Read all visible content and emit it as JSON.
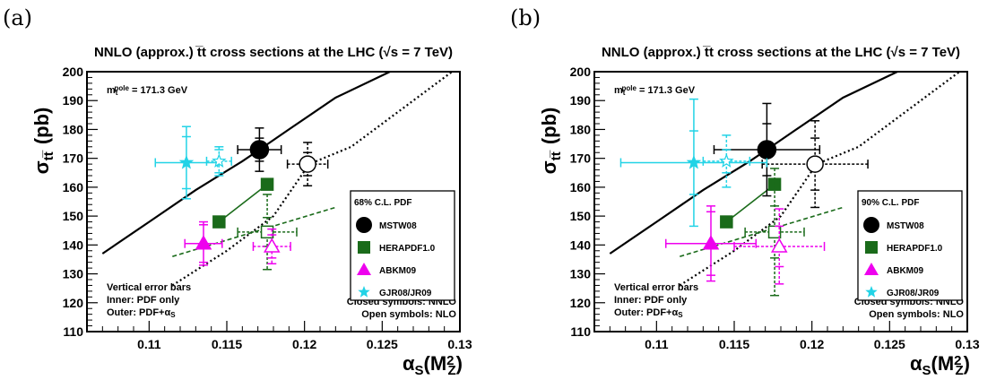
{
  "figure": {
    "panel_labels": [
      "(a)",
      "(b)"
    ],
    "title": "NNLO (approx.) tt cross sections at the LHC (√s = 7 TeV)",
    "ylabel": "σtt (pb)",
    "xlabel": "αS(M²Z)",
    "mass_note": "m_t^pole = 171.3 GeV",
    "error_bar_note": [
      "Vertical error bars",
      "Inner: PDF only",
      "Outer: PDF+αS"
    ],
    "symbols_note": [
      "Closed symbols: NNLO",
      "Open symbols: NLO"
    ]
  },
  "colors": {
    "MSTW08": "#000000",
    "HERAPDF1.0": "#1a6b1a",
    "ABKM09": "#ee00ee",
    "GJR08/JR09": "#22d3e6"
  },
  "chart_data": [
    {
      "type": "scatter",
      "panel": "(a)",
      "title": "NNLO (approx.) tt cross sections at the LHC (√s = 7 TeV)",
      "xlabel": "αS(M²Z)",
      "ylabel": "σtt (pb)",
      "xlim": [
        0.106,
        0.13
      ],
      "ylim": [
        110,
        200
      ],
      "xticks": [
        0.11,
        0.115,
        0.12,
        0.125,
        0.13
      ],
      "yticks": [
        110,
        120,
        130,
        140,
        150,
        160,
        170,
        180,
        190,
        200
      ],
      "legend_title": "68% C.L. PDF",
      "legend_position": "right",
      "curves": [
        {
          "name": "MSTW08 NNLO",
          "style": "solid",
          "x": [
            0.107,
            0.11,
            0.113,
            0.116,
            0.1171,
            0.119,
            0.122,
            0.1255
          ],
          "y": [
            137,
            148,
            159,
            169,
            173,
            180,
            191,
            200
          ]
        },
        {
          "name": "MSTW08 NLO",
          "style": "dotted",
          "x": [
            0.1115,
            0.115,
            0.118,
            0.1203,
            0.123,
            0.126,
            0.1295
          ],
          "y": [
            126,
            138,
            150,
            168,
            174,
            186,
            200
          ]
        },
        {
          "name": "HERAPDF1.0 NNLO",
          "style": "solid",
          "x": [
            0.1145,
            0.1176
          ],
          "y": [
            148,
            161
          ]
        },
        {
          "name": "HERAPDF1.0 NLO",
          "style": "dashed",
          "x": [
            0.1115,
            0.122
          ],
          "y": [
            136,
            153
          ]
        }
      ],
      "series": [
        {
          "name": "MSTW08",
          "order": "NNLO",
          "x": 0.1171,
          "y": 173,
          "xerr": 0.0014,
          "yerr_inner": 4,
          "yerr_outer": 7.5
        },
        {
          "name": "MSTW08",
          "order": "NLO",
          "x": 0.1202,
          "y": 168,
          "xerr": 0.0013,
          "yerr_inner": 4,
          "yerr_outer": 7.5
        },
        {
          "name": "HERAPDF1.0",
          "order": "NNLO",
          "x": 0.1176,
          "y": 161
        },
        {
          "name": "HERAPDF1.0",
          "order": "NNLO",
          "x": 0.1145,
          "y": 148
        },
        {
          "name": "HERAPDF1.0",
          "order": "NLO",
          "x": 0.1176,
          "y": 144.5,
          "xerr": 0.0019,
          "yerr_inner": 5,
          "yerr_outer": 13
        },
        {
          "name": "ABKM09",
          "order": "NNLO",
          "x": 0.1135,
          "y": 140.5,
          "xerr": 0.0012,
          "yerr_inner": 6.5,
          "yerr_outer": 7.5
        },
        {
          "name": "ABKM09",
          "order": "NLO",
          "x": 0.1179,
          "y": 139.5,
          "xerr": 0.0012,
          "yerr_inner": 4,
          "yerr_outer": 6
        },
        {
          "name": "GJR08/JR09",
          "order": "NNLO",
          "x": 0.1124,
          "y": 168.5,
          "xerr": 0.002,
          "yerr_inner": 9,
          "yerr_outer": 12.5
        },
        {
          "name": "GJR08/JR09",
          "order": "NLO",
          "x": 0.1145,
          "y": 169,
          "xerr": 0.0008,
          "yerr_inner": 4,
          "yerr_outer": 5
        }
      ]
    },
    {
      "type": "scatter",
      "panel": "(b)",
      "title": "NNLO (approx.) tt cross sections at the LHC (√s = 7 TeV)",
      "xlabel": "αS(M²Z)",
      "ylabel": "σtt (pb)",
      "xlim": [
        0.106,
        0.13
      ],
      "ylim": [
        110,
        200
      ],
      "xticks": [
        0.11,
        0.115,
        0.12,
        0.125,
        0.13
      ],
      "yticks": [
        110,
        120,
        130,
        140,
        150,
        160,
        170,
        180,
        190,
        200
      ],
      "legend_title": "90% C.L. PDF",
      "legend_position": "right",
      "curves": [
        {
          "name": "MSTW08 NNLO",
          "style": "solid",
          "x": [
            0.107,
            0.11,
            0.113,
            0.116,
            0.1171,
            0.119,
            0.122,
            0.1255
          ],
          "y": [
            137,
            148,
            159,
            169,
            173,
            180,
            191,
            200
          ]
        },
        {
          "name": "MSTW08 NLO",
          "style": "dotted",
          "x": [
            0.1115,
            0.115,
            0.118,
            0.1203,
            0.123,
            0.126,
            0.1295
          ],
          "y": [
            126,
            138,
            150,
            168,
            174,
            186,
            200
          ]
        },
        {
          "name": "HERAPDF1.0 NNLO",
          "style": "solid",
          "x": [
            0.1145,
            0.1176
          ],
          "y": [
            148,
            161
          ]
        },
        {
          "name": "HERAPDF1.0 NLO",
          "style": "dashed",
          "x": [
            0.1115,
            0.122
          ],
          "y": [
            136,
            153
          ]
        }
      ],
      "series": [
        {
          "name": "MSTW08",
          "order": "NNLO",
          "x": 0.1171,
          "y": 173,
          "xerr": 0.0034,
          "yerr_inner": 9,
          "yerr_outer": 16
        },
        {
          "name": "MSTW08",
          "order": "NLO",
          "x": 0.1202,
          "y": 168,
          "xerr": 0.0034,
          "yerr_inner": 9,
          "yerr_outer": 15
        },
        {
          "name": "HERAPDF1.0",
          "order": "NNLO",
          "x": 0.1176,
          "y": 161
        },
        {
          "name": "HERAPDF1.0",
          "order": "NNLO",
          "x": 0.1145,
          "y": 148
        },
        {
          "name": "HERAPDF1.0",
          "order": "NLO",
          "x": 0.1176,
          "y": 144.5,
          "xerr": 0.0019,
          "yerr_inner": 9,
          "yerr_outer": 22
        },
        {
          "name": "ABKM09",
          "order": "NNLO",
          "x": 0.1135,
          "y": 140.5,
          "xerr": 0.0029,
          "yerr_inner": 11,
          "yerr_outer": 13
        },
        {
          "name": "ABKM09",
          "order": "NLO",
          "x": 0.1179,
          "y": 139.5,
          "xerr": 0.0029,
          "yerr_inner": 7,
          "yerr_outer": 13
        },
        {
          "name": "GJR08/JR09",
          "order": "NNLO",
          "x": 0.1124,
          "y": 168.5,
          "xerr": 0.0047,
          "yerr_inner": 11,
          "yerr_outer": 22
        },
        {
          "name": "GJR08/JR09",
          "order": "NLO",
          "x": 0.1145,
          "y": 169,
          "xerr": 0.0015,
          "yerr_inner": 4,
          "yerr_outer": 9
        }
      ]
    }
  ]
}
